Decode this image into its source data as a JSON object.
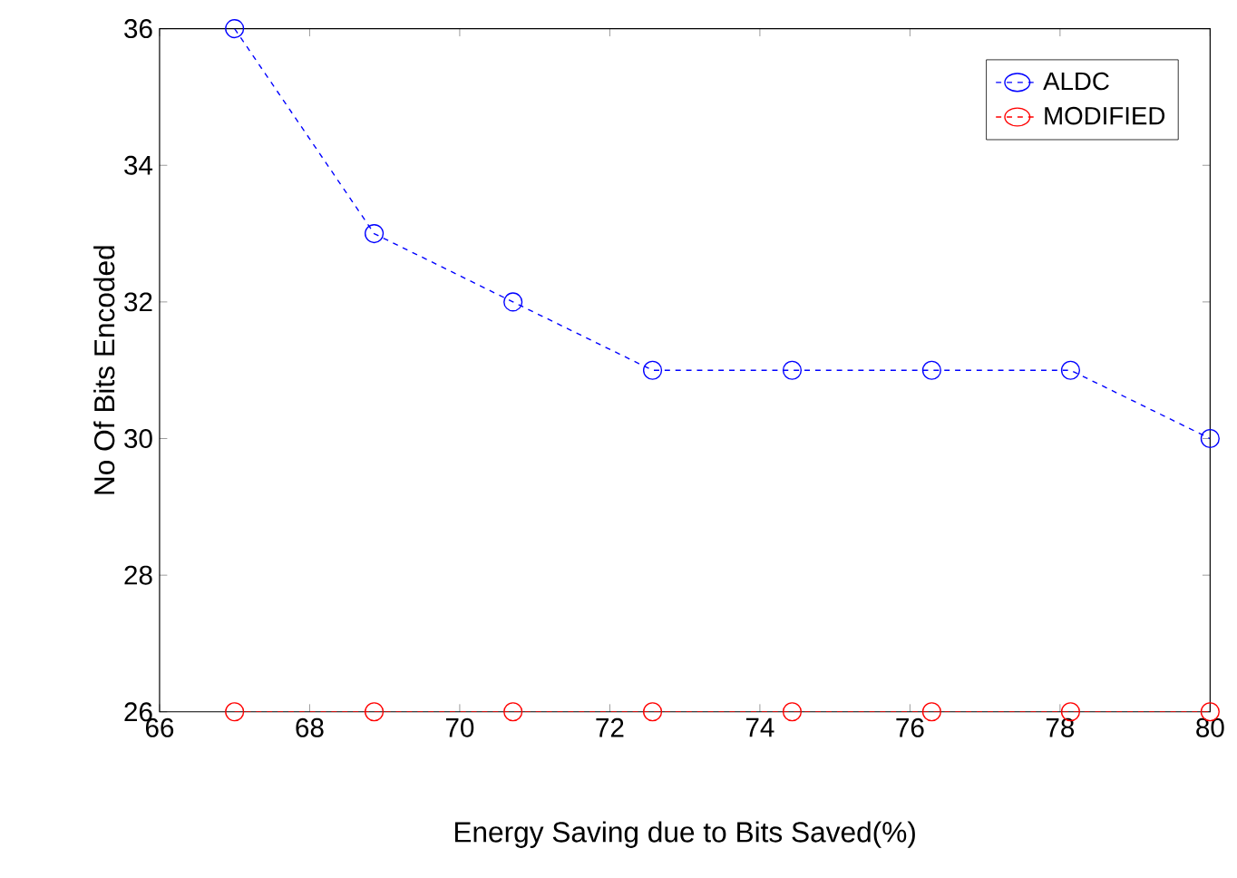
{
  "chart_data": {
    "type": "line",
    "xlabel": "Energy Saving due to Bits Saved(%)",
    "ylabel": "No Of Bits Encoded",
    "x": [
      67,
      68.86,
      70.71,
      72.57,
      74.43,
      76.29,
      78.14,
      80
    ],
    "series": [
      {
        "name": "ALDC",
        "color": "#0000ff",
        "values": [
          36,
          33,
          32,
          31,
          31,
          31,
          31,
          30
        ]
      },
      {
        "name": "MODIFIED",
        "color": "#ff0000",
        "values": [
          26,
          26,
          26,
          26,
          26,
          26,
          26,
          26
        ]
      }
    ],
    "xlim": [
      66,
      80
    ],
    "xticks": [
      66,
      68,
      70,
      72,
      74,
      76,
      78,
      80
    ],
    "ylim": [
      26,
      36
    ],
    "yticks": [
      26,
      28,
      30,
      32,
      34,
      36
    ],
    "marker": "circle",
    "line_style": "dashed",
    "legend": "top right",
    "grid": false
  }
}
